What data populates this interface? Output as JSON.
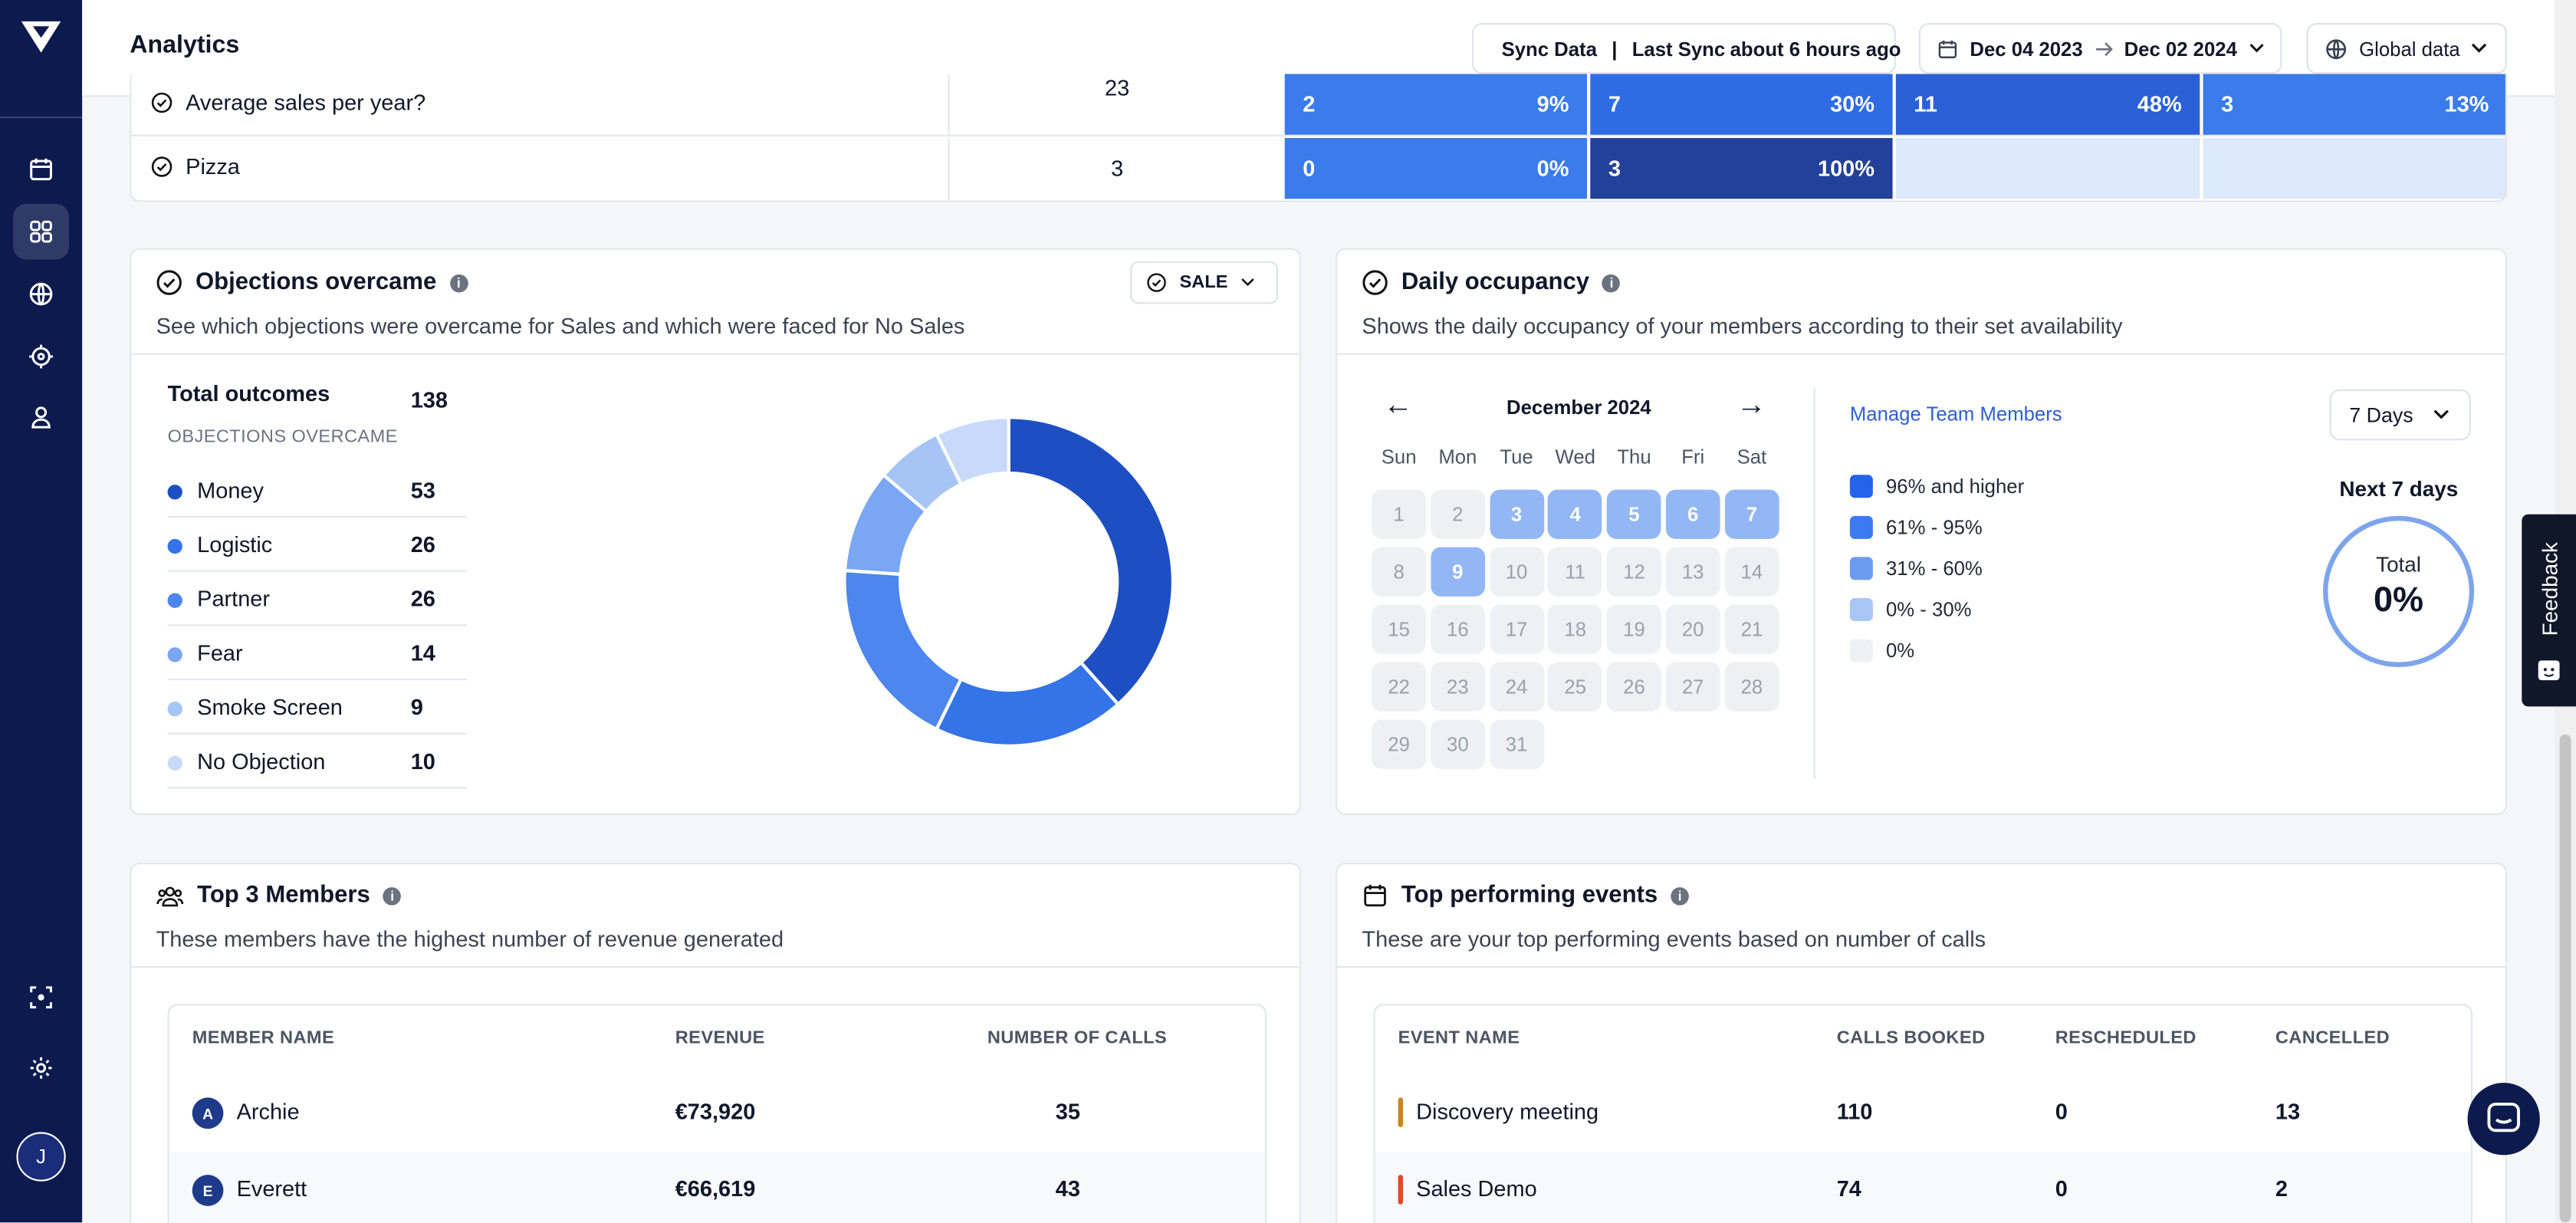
{
  "app": {
    "title": "Analytics",
    "user_initial": "J"
  },
  "topbar": {
    "sync_label": "Sync Data",
    "sync_sep": "|",
    "last_sync": "Last Sync",
    "last_sync_time": "about 6 hours ago",
    "date_from": "Dec 04 2023",
    "date_to": "Dec 02 2024",
    "scope": "Global data"
  },
  "questions_table": {
    "rows": [
      {
        "label": "Average sales per year?",
        "total": "23",
        "segments": [
          {
            "count": "2",
            "pct": "9%"
          },
          {
            "count": "7",
            "pct": "30%"
          },
          {
            "count": "11",
            "pct": "48%"
          },
          {
            "count": "3",
            "pct": "13%"
          }
        ]
      },
      {
        "label": "Pizza",
        "total": "3",
        "segments": [
          {
            "count": "0",
            "pct": "0%"
          },
          {
            "count": "3",
            "pct": "100%"
          },
          {
            "count": "",
            "pct": ""
          },
          {
            "count": "",
            "pct": ""
          }
        ]
      }
    ]
  },
  "objections": {
    "title": "Objections overcame",
    "subtitle": "See which objections were overcame for Sales and which were faced for No Sales",
    "filter_label": "SALE",
    "total_label": "Total outcomes",
    "total_value": "138",
    "section_label": "OBJECTIONS OVERCAME",
    "items": [
      {
        "name": "Money",
        "value": "53",
        "color": "#1e4fc2"
      },
      {
        "name": "Logistic",
        "value": "26",
        "color": "#3473e8"
      },
      {
        "name": "Partner",
        "value": "26",
        "color": "#4c86ee"
      },
      {
        "name": "Fear",
        "value": "14",
        "color": "#7aa6f2"
      },
      {
        "name": "Smoke Screen",
        "value": "9",
        "color": "#a6c4f6"
      },
      {
        "name": "No Objection",
        "value": "10",
        "color": "#c8daf9"
      }
    ]
  },
  "chart_data": {
    "type": "pie",
    "categories": [
      "Money",
      "Logistic",
      "Partner",
      "Fear",
      "Smoke Screen",
      "No Objection"
    ],
    "values": [
      53,
      26,
      26,
      14,
      9,
      10
    ],
    "colors": [
      "#1e4fc2",
      "#3473e8",
      "#4c86ee",
      "#7aa6f2",
      "#a6c4f6",
      "#c8daf9"
    ],
    "donut": true
  },
  "occupancy": {
    "title": "Daily occupancy",
    "subtitle": "Shows the daily occupancy of your members according to their set availability",
    "month": "December 2024",
    "prev_arrow": "←",
    "next_arrow": "→",
    "weekdays": [
      "Sun",
      "Mon",
      "Tue",
      "Wed",
      "Thu",
      "Fri",
      "Sat"
    ],
    "days": [
      "1",
      "2",
      "3",
      "4",
      "5",
      "6",
      "7",
      "8",
      "9",
      "10",
      "11",
      "12",
      "13",
      "14",
      "15",
      "16",
      "17",
      "18",
      "19",
      "20",
      "21",
      "22",
      "23",
      "24",
      "25",
      "26",
      "27",
      "28",
      "29",
      "30",
      "31"
    ],
    "highlighted_days": [
      "3",
      "4",
      "5",
      "6",
      "7",
      "9"
    ],
    "manage_link": "Manage Team Members",
    "range_select": "7 Days",
    "legend": [
      {
        "label": "96% and higher",
        "color": "#2563eb"
      },
      {
        "label": "61% - 95%",
        "color": "#3b7af0"
      },
      {
        "label": "31% - 60%",
        "color": "#6b9cf2"
      },
      {
        "label": "0% - 30%",
        "color": "#a9c6f7"
      },
      {
        "label": "0%",
        "color": "#eef0f3"
      }
    ],
    "next_label": "Next 7 days",
    "total_label": "Total",
    "total_value": "0%"
  },
  "top_members": {
    "title": "Top 3 Members",
    "subtitle": "These members have the highest number of revenue generated",
    "headers": [
      "MEMBER NAME",
      "REVENUE",
      "NUMBER OF CALLS"
    ],
    "rows": [
      {
        "initial": "A",
        "name": "Archie",
        "revenue": "€73,920",
        "calls": "35"
      },
      {
        "initial": "E",
        "name": "Everett",
        "revenue": "€66,619",
        "calls": "43"
      }
    ]
  },
  "top_events": {
    "title": "Top performing events",
    "subtitle": "These are your top performing events based on number of calls",
    "headers": [
      "EVENT NAME",
      "CALLS BOOKED",
      "RESCHEDULED",
      "CANCELLED"
    ],
    "rows": [
      {
        "name": "Discovery meeting",
        "booked": "110",
        "rescheduled": "0",
        "cancelled": "13",
        "color": "#c9871f"
      },
      {
        "name": "Sales Demo",
        "booked": "74",
        "rescheduled": "0",
        "cancelled": "2",
        "color": "#e5482c"
      }
    ]
  },
  "feedback": {
    "label": "Feedback"
  }
}
